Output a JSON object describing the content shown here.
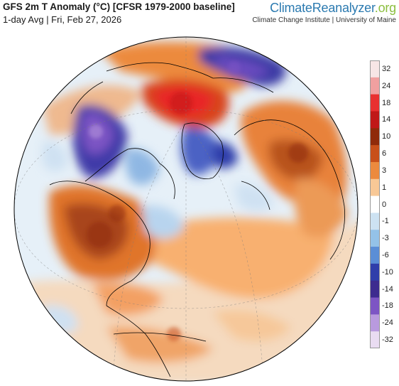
{
  "header": {
    "title": "GFS 2m T Anomaly (°C) [CFSR 1979-2000 baseline]",
    "subtitle": "1-day Avg | Fri, Feb 27, 2026"
  },
  "brand": {
    "name_part1": "Climate",
    "name_part2": "Reanalyzer",
    "name_part3": ".org",
    "affiliation": "Climate Change Institute | University of Maine"
  },
  "legend": {
    "labels": [
      "32",
      "24",
      "18",
      "14",
      "10",
      "6",
      "3",
      "1",
      "0",
      "-1",
      "-3",
      "-6",
      "-10",
      "-14",
      "-18",
      "-24",
      "-32"
    ],
    "colors": [
      "#f7e6e6",
      "#f0a0a0",
      "#e83030",
      "#c01818",
      "#8f2a0a",
      "#c8501a",
      "#ec8a3e",
      "#f8c896",
      "#ffffff",
      "#cde2f2",
      "#94c2e8",
      "#5b8ed6",
      "#2f3eaa",
      "#3d2b8f",
      "#7d55c4",
      "#b99ade",
      "#e9dcf2"
    ]
  },
  "map": {
    "projection": "orthographic (Northern Hemisphere)",
    "colors": {
      "background": "#ffffff",
      "ocean_base": "#e6f0f8",
      "outline": "#000000"
    }
  }
}
